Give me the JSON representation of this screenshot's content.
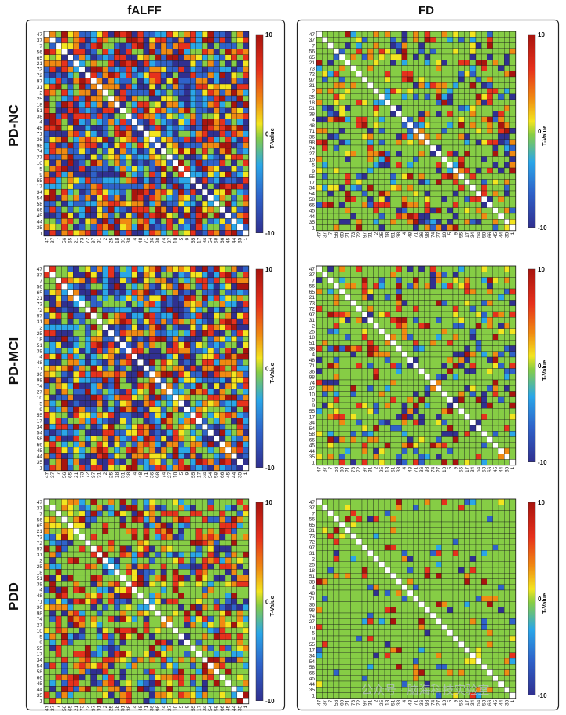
{
  "figure": {
    "columns": [
      "fALFF",
      "FD"
    ],
    "rows": [
      "PD-NC",
      "PD-MCI",
      "PDD"
    ],
    "watermark": "公众号 · 脑海科技实验室"
  },
  "colors": {
    "neg_max": "#303090",
    "neg_mid": "#2aa6e8",
    "zero": "#86cd45",
    "pos_low": "#f3e51f",
    "pos_mid": "#f08a12",
    "pos_max": "#a8140e",
    "diagonal": "#ffffff",
    "grid": "#1a1a1a"
  },
  "chart_data": [
    {
      "type": "heatmap",
      "id": "pdnc-falff",
      "row": "PD-NC",
      "column": "fALFF",
      "title": "fALFF",
      "regions": [
        "47",
        "37",
        "7",
        "56",
        "65",
        "21",
        "73",
        "72",
        "97",
        "31",
        "2",
        "25",
        "18",
        "51",
        "38",
        "4",
        "48",
        "71",
        "36",
        "98",
        "74",
        "27",
        "10",
        "5",
        "9",
        "55",
        "17",
        "34",
        "54",
        "58",
        "66",
        "45",
        "44",
        "35",
        "1"
      ],
      "colorbar": {
        "label": "T-Value",
        "ticks": [
          "10",
          "0",
          "-10"
        ],
        "range": [
          -10,
          10
        ]
      },
      "pattern": {
        "seed": 11,
        "zero_prob": 0.12,
        "pos_prob": 0.48,
        "diagonal": 0
      }
    },
    {
      "type": "heatmap",
      "id": "pdnc-fd",
      "row": "PD-NC",
      "column": "FD",
      "title": "FD",
      "regions": [
        "47",
        "37",
        "7",
        "56",
        "65",
        "21",
        "73",
        "72",
        "97",
        "31",
        "2",
        "25",
        "18",
        "51",
        "38",
        "4",
        "48",
        "71",
        "36",
        "98",
        "74",
        "27",
        "10",
        "5",
        "9",
        "55",
        "17",
        "34",
        "54",
        "58",
        "66",
        "45",
        "44",
        "35",
        "1"
      ],
      "colorbar": {
        "label": "T-Value",
        "ticks": [
          "10",
          "0",
          "-10"
        ],
        "range": [
          -10,
          10
        ]
      },
      "pattern": {
        "seed": 23,
        "zero_prob": 0.66,
        "pos_prob": 0.55,
        "diagonal": 0
      }
    },
    {
      "type": "heatmap",
      "id": "pdmci-falff",
      "row": "PD-MCI",
      "column": "fALFF",
      "regions": [
        "47",
        "37",
        "7",
        "56",
        "65",
        "21",
        "73",
        "72",
        "97",
        "31",
        "2",
        "25",
        "18",
        "51",
        "38",
        "4",
        "48",
        "71",
        "36",
        "98",
        "74",
        "27",
        "10",
        "5",
        "9",
        "55",
        "17",
        "34",
        "54",
        "58",
        "66",
        "45",
        "44",
        "35",
        "1"
      ],
      "colorbar": {
        "label": "T-Value",
        "ticks": [
          "10",
          "0",
          "-10"
        ],
        "range": [
          -10,
          10
        ]
      },
      "pattern": {
        "seed": 37,
        "zero_prob": 0.15,
        "pos_prob": 0.47,
        "diagonal": 0
      }
    },
    {
      "type": "heatmap",
      "id": "pdmci-fd",
      "row": "PD-MCI",
      "column": "FD",
      "regions": [
        "47",
        "37",
        "7",
        "56",
        "65",
        "21",
        "73",
        "72",
        "97",
        "31",
        "2",
        "25",
        "18",
        "51",
        "38",
        "4",
        "48",
        "71",
        "36",
        "98",
        "74",
        "27",
        "10",
        "5",
        "9",
        "55",
        "17",
        "34",
        "54",
        "58",
        "66",
        "45",
        "44",
        "35",
        "1"
      ],
      "colorbar": {
        "label": "T-Value",
        "ticks": [
          "10",
          "0",
          "-10"
        ],
        "range": [
          -10,
          10
        ]
      },
      "pattern": {
        "seed": 51,
        "zero_prob": 0.72,
        "pos_prob": 0.55,
        "diagonal": 0
      }
    },
    {
      "type": "heatmap",
      "id": "pdd-falff",
      "row": "PDD",
      "column": "fALFF",
      "regions": [
        "47",
        "37",
        "7",
        "56",
        "65",
        "21",
        "73",
        "72",
        "97",
        "31",
        "2",
        "25",
        "18",
        "51",
        "38",
        "4",
        "48",
        "71",
        "36",
        "98",
        "74",
        "27",
        "10",
        "5",
        "9",
        "55",
        "17",
        "34",
        "54",
        "58",
        "66",
        "45",
        "44",
        "35",
        "1"
      ],
      "colorbar": {
        "label": "T-Value",
        "ticks": [
          "10",
          "0",
          "-10"
        ],
        "range": [
          -10,
          10
        ]
      },
      "pattern": {
        "seed": 67,
        "zero_prob": 0.42,
        "pos_prob": 0.6,
        "diagonal": 0
      }
    },
    {
      "type": "heatmap",
      "id": "pdd-fd",
      "row": "PDD",
      "column": "FD",
      "regions": [
        "47",
        "37",
        "7",
        "56",
        "65",
        "21",
        "73",
        "72",
        "97",
        "31",
        "2",
        "25",
        "18",
        "51",
        "38",
        "4",
        "48",
        "71",
        "36",
        "98",
        "74",
        "27",
        "10",
        "5",
        "9",
        "55",
        "17",
        "34",
        "54",
        "58",
        "66",
        "45",
        "44",
        "35",
        "1"
      ],
      "colorbar": {
        "label": "T-Value",
        "ticks": [
          "10",
          "0",
          "-10"
        ],
        "range": [
          -10,
          10
        ]
      },
      "pattern": {
        "seed": 83,
        "zero_prob": 0.86,
        "pos_prob": 0.6,
        "diagonal": 0
      }
    }
  ]
}
